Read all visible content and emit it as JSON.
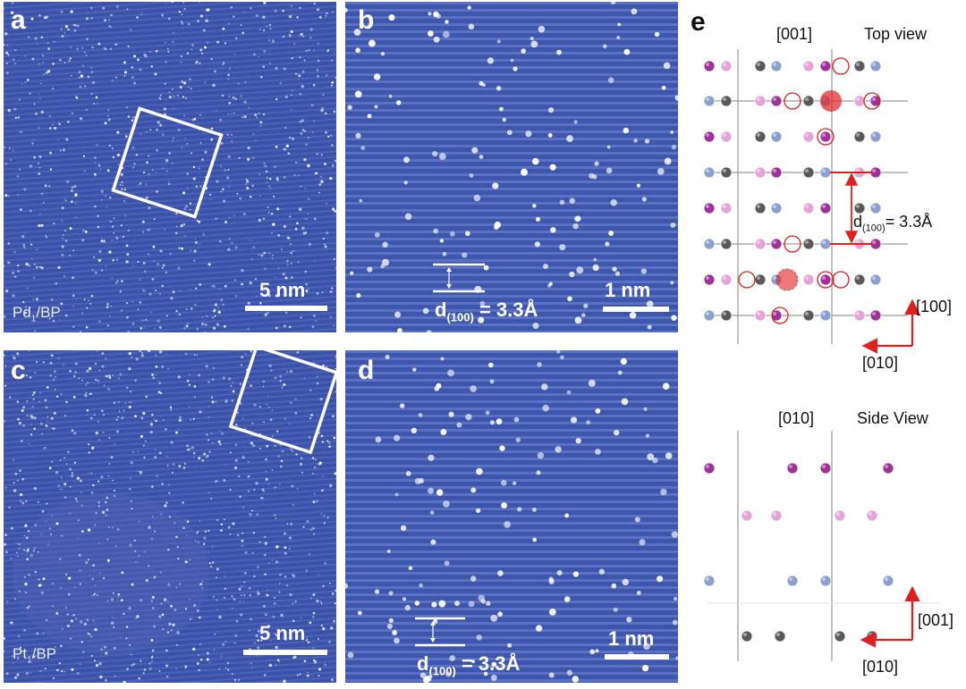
{
  "figure": {
    "panel_a": {
      "label": "a",
      "sample": "Pd",
      "sample_sub": "1",
      "sample_tail": "/BP",
      "scale": "5 nm"
    },
    "panel_b": {
      "label": "b",
      "d_main": "d",
      "d_sub": "(100)",
      "d_value": "= 3.3Å",
      "scale": "1 nm"
    },
    "panel_c": {
      "label": "c",
      "sample": "Pt",
      "sample_sub": "1",
      "sample_tail": "/BP",
      "scale": "5 nm"
    },
    "panel_d": {
      "label": "d",
      "d_main": "d",
      "d_sub": "(100)",
      "d_value": "= 3.3Å",
      "scale": "1 nm"
    },
    "panel_e": {
      "label": "e",
      "top_view_title": "Top view",
      "top_axis_label": "[001]",
      "top_d_main": "d",
      "top_d_sub": "(100)",
      "top_d_value": "= 3.3Å",
      "top_dir_vertical": "[100]",
      "top_dir_horizontal": "[010]",
      "side_view_title": "Side View",
      "side_axis_label": "[010]",
      "side_dir_vertical": "[001]",
      "side_dir_horizontal": "[010]"
    }
  },
  "colors": {
    "stem_background": "#3a52a8",
    "atom_magenta": "#a0309a",
    "atom_pink": "#e7a3d7",
    "atom_gray": "#595959",
    "atom_blue": "#8ca0d0",
    "highlight_red": "#e02020"
  }
}
